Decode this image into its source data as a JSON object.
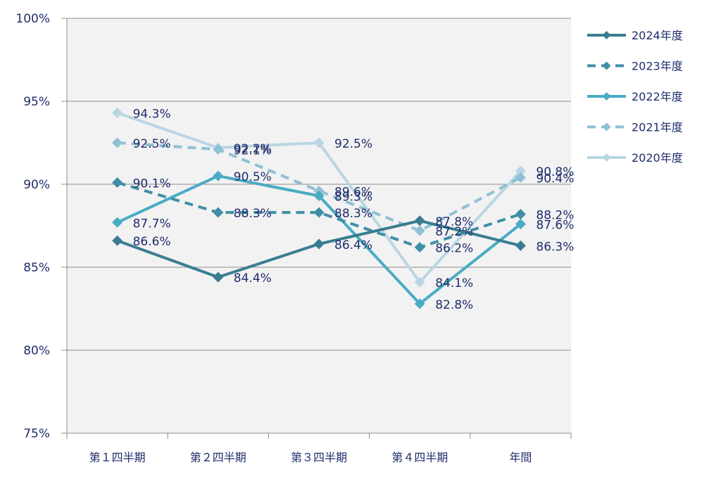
{
  "chart_data": {
    "type": "line",
    "categories": [
      "第１四半期",
      "第２四半期",
      "第３四半期",
      "第４四半期",
      "年間"
    ],
    "ylim": [
      75,
      100
    ],
    "yticks": [
      75,
      80,
      85,
      90,
      95,
      100
    ],
    "ytick_labels": [
      "75%",
      "80%",
      "85%",
      "90%",
      "95%",
      "100%"
    ],
    "grid": true,
    "legend_position": "right",
    "series": [
      {
        "name": "2024年度",
        "values": [
          86.6,
          84.4,
          86.4,
          87.8,
          86.3
        ],
        "labels": [
          "86.6%",
          "84.4%",
          "86.4%",
          "87.8%",
          "86.3%"
        ],
        "color": "#3a7d92",
        "dashed": false
      },
      {
        "name": "2023年度",
        "values": [
          90.1,
          88.3,
          88.3,
          86.2,
          88.2
        ],
        "labels": [
          "90.1%",
          "88.3%",
          "88.3%",
          "86.2%",
          "88.2%"
        ],
        "color": "#3f8ea6",
        "dashed": true
      },
      {
        "name": "2022年度",
        "values": [
          87.7,
          90.5,
          89.3,
          82.8,
          87.6
        ],
        "labels": [
          "87.7%",
          "90.5%",
          "89.3%",
          "82.8%",
          "87.6%"
        ],
        "color": "#4aabc5",
        "dashed": false
      },
      {
        "name": "2021年度",
        "values": [
          92.5,
          92.1,
          89.6,
          87.2,
          90.4
        ],
        "labels": [
          "92.5%",
          "92.1%",
          "89.6%",
          "87.2%",
          "90.4%"
        ],
        "color": "#8fc0d3",
        "dashed": true
      },
      {
        "name": "2020年度",
        "values": [
          94.3,
          92.2,
          92.5,
          84.1,
          90.8
        ],
        "labels": [
          "94.3%",
          "92.2%",
          "92.5%",
          "84.1%",
          "90.8%"
        ],
        "color": "#b9d6e2",
        "dashed": false
      }
    ]
  }
}
